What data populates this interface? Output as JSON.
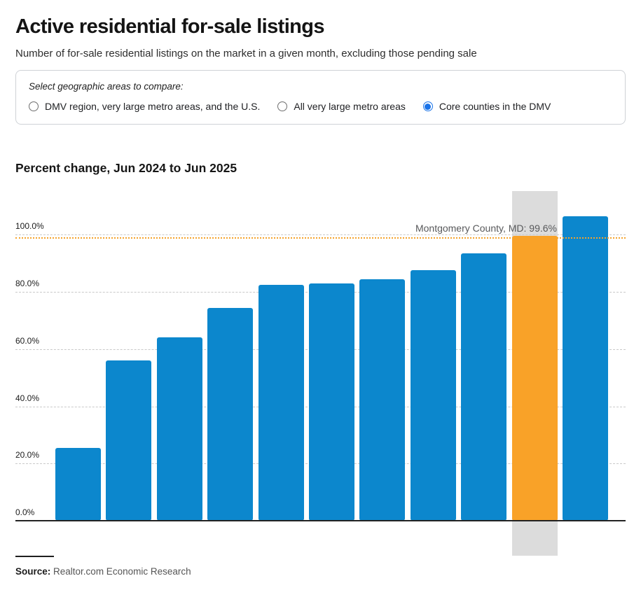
{
  "header": {
    "title": "Active residential for-sale listings",
    "subtitle": "Number of for-sale residential listings on the market in a given month, excluding those pending sale"
  },
  "selector": {
    "label": "Select geographic areas to compare:",
    "options": [
      {
        "label": "DMV region, very large metro areas, and the U.S.",
        "selected": false
      },
      {
        "label": "All very large metro areas",
        "selected": false
      },
      {
        "label": "Core counties in the DMV",
        "selected": true
      }
    ]
  },
  "chart_data": {
    "type": "bar",
    "title": "Percent change, Jun 2024 to Jun 2025",
    "ylabel": "Percent change",
    "ylim": [
      0,
      110
    ],
    "grid": "horizontal-dashed",
    "legend": "none",
    "x_axis_labels": "none",
    "y_ticks": [
      {
        "value": 0,
        "label": "0.0%"
      },
      {
        "value": 20,
        "label": "20.0%"
      },
      {
        "value": 40,
        "label": "40.0%"
      },
      {
        "value": 60,
        "label": "60.0%"
      },
      {
        "value": 80,
        "label": "80.0%"
      },
      {
        "value": 100,
        "label": "100.0%"
      }
    ],
    "bars": [
      {
        "value": 25.5
      },
      {
        "value": 56.0
      },
      {
        "value": 64.0
      },
      {
        "value": 74.5
      },
      {
        "value": 82.5
      },
      {
        "value": 83.0
      },
      {
        "value": 84.5
      },
      {
        "value": 87.5
      },
      {
        "value": 93.5
      },
      {
        "value": 99.6,
        "label": "Montgomery County, MD",
        "highlighted": true
      },
      {
        "value": 106.5
      }
    ],
    "annotation": {
      "text": "Montgomery County, MD: 99.6%",
      "value": 99.6
    },
    "reference_line": {
      "value": 99.6,
      "style": "dotted"
    },
    "colors": {
      "bar": "#0c87cd",
      "highlighted_bar": "#f9a228",
      "highlight_band": "#dcdcdc",
      "gridline": "#c9c9c9",
      "reference_line": "#f5a32b",
      "axis": "#222222",
      "annotation_text": "#58595b"
    }
  },
  "footer": {
    "source_label": "Source:",
    "source_text": "Realtor.com Economic Research"
  }
}
